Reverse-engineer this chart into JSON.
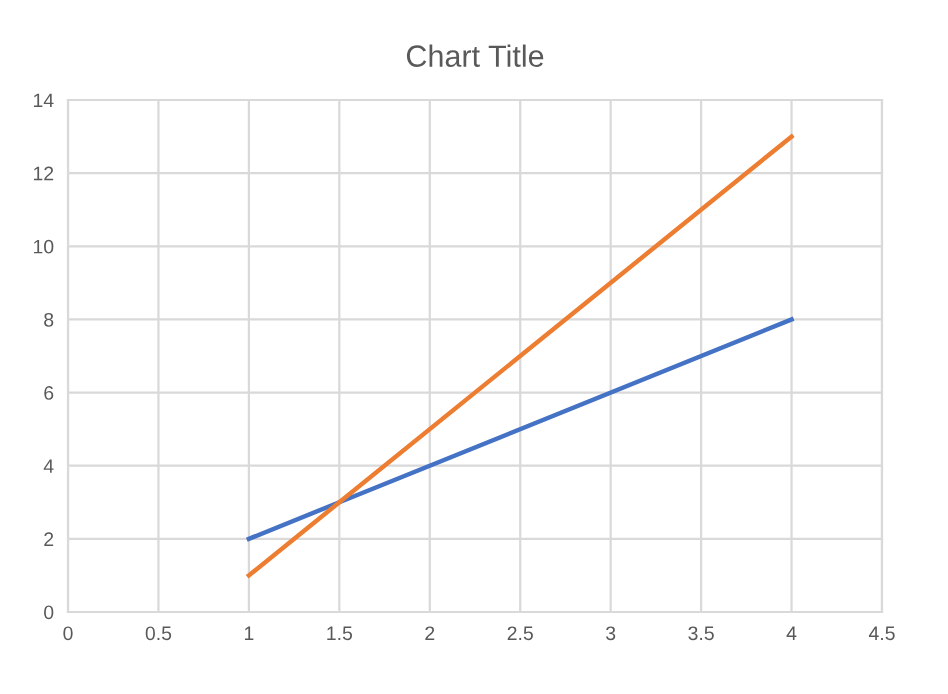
{
  "chart_data": {
    "type": "line",
    "title": "Chart Title",
    "series": [
      {
        "color": "#4472c4",
        "x": [
          1,
          1.5,
          4
        ],
        "values": [
          2,
          3,
          8
        ]
      },
      {
        "color": "#ed7d31",
        "x": [
          1,
          1.5,
          4
        ],
        "values": [
          1,
          3,
          13
        ]
      }
    ],
    "xlim": [
      0,
      4.5
    ],
    "xticks": [
      0,
      0.5,
      1,
      1.5,
      2,
      2.5,
      3,
      3.5,
      4,
      4.5
    ],
    "ylim": [
      0,
      14
    ],
    "yticks": [
      0,
      2,
      4,
      6,
      8,
      10,
      12,
      14
    ],
    "grid": true,
    "marker": "none",
    "line_style": "solid"
  }
}
